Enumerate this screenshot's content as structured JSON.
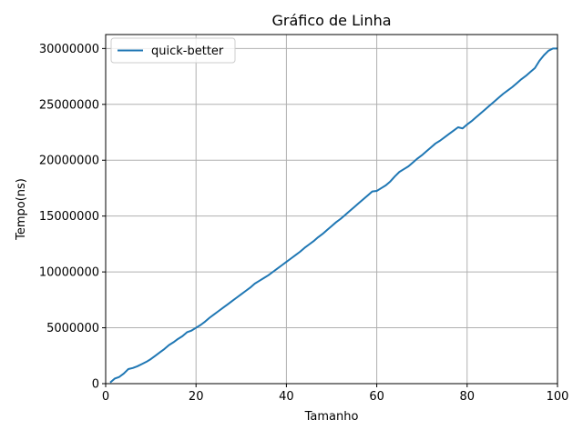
{
  "chart_data": {
    "type": "line",
    "title": "Gráfico de Linha",
    "xlabel": "Tamanho",
    "ylabel": "Tempo(ns)",
    "xlim": [
      0,
      100
    ],
    "ylim": [
      0,
      31250000
    ],
    "xticks": [
      0,
      20,
      40,
      60,
      80,
      100
    ],
    "yticks": [
      0,
      5000000,
      10000000,
      15000000,
      20000000,
      25000000,
      30000000
    ],
    "grid": true,
    "legend_position": "top-left",
    "series": [
      {
        "name": "quick-better",
        "color": "#1f77b4",
        "x": [
          1,
          2,
          3,
          4,
          5,
          6,
          7,
          8,
          9,
          10,
          11,
          12,
          13,
          14,
          15,
          16,
          17,
          18,
          19,
          20,
          21,
          22,
          23,
          24,
          25,
          26,
          27,
          28,
          29,
          30,
          31,
          32,
          33,
          34,
          35,
          36,
          37,
          38,
          39,
          40,
          41,
          42,
          43,
          44,
          45,
          46,
          47,
          48,
          49,
          50,
          51,
          52,
          53,
          54,
          55,
          56,
          57,
          58,
          59,
          60,
          61,
          62,
          63,
          64,
          65,
          66,
          67,
          68,
          69,
          70,
          71,
          72,
          73,
          74,
          75,
          76,
          77,
          78,
          79,
          80,
          81,
          82,
          83,
          84,
          85,
          86,
          87,
          88,
          89,
          90,
          91,
          92,
          93,
          94,
          95,
          96,
          97,
          98,
          99,
          100
        ],
        "y": [
          100000,
          450000,
          600000,
          900000,
          1300000,
          1400000,
          1550000,
          1750000,
          1950000,
          2200000,
          2500000,
          2800000,
          3100000,
          3450000,
          3700000,
          4000000,
          4250000,
          4600000,
          4750000,
          5000000,
          5250000,
          5550000,
          5900000,
          6200000,
          6500000,
          6800000,
          7100000,
          7400000,
          7700000,
          8000000,
          8300000,
          8600000,
          8950000,
          9200000,
          9450000,
          9700000,
          10000000,
          10300000,
          10600000,
          10900000,
          11200000,
          11500000,
          11800000,
          12150000,
          12450000,
          12750000,
          13100000,
          13400000,
          13750000,
          14100000,
          14450000,
          14750000,
          15100000,
          15450000,
          15800000,
          16150000,
          16500000,
          16850000,
          17200000,
          17250000,
          17500000,
          17750000,
          18100000,
          18550000,
          18950000,
          19200000,
          19450000,
          19800000,
          20150000,
          20450000,
          20800000,
          21150000,
          21500000,
          21750000,
          22050000,
          22350000,
          22650000,
          22950000,
          22850000,
          23200000,
          23500000,
          23850000,
          24200000,
          24550000,
          24900000,
          25250000,
          25600000,
          25950000,
          26250000,
          26550000,
          26900000,
          27250000,
          27550000,
          27900000,
          28250000,
          28900000,
          29400000,
          29800000,
          30000000,
          30000000
        ]
      }
    ]
  }
}
